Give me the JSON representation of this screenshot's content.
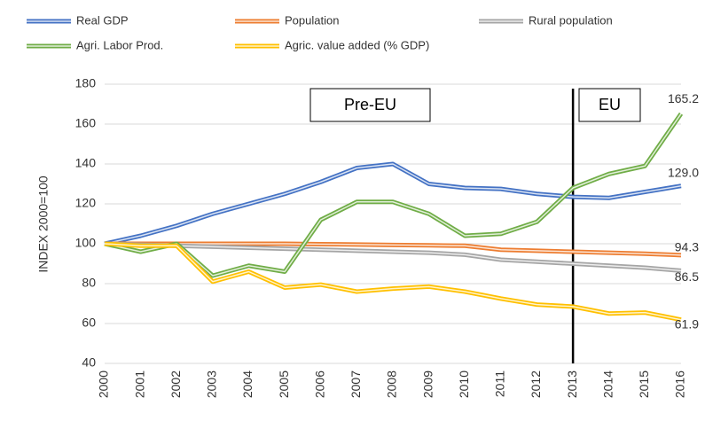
{
  "chart_data": {
    "type": "line",
    "y_label": "INDEX 2000=100",
    "categories": [
      "2000",
      "2001",
      "2002",
      "2003",
      "2004",
      "2005",
      "2006",
      "2007",
      "2008",
      "2009",
      "2010",
      "2011",
      "2012",
      "2013",
      "2014",
      "2015",
      "2016"
    ],
    "ylim": [
      40,
      180
    ],
    "yticks": [
      40,
      60,
      80,
      100,
      120,
      140,
      160,
      180
    ],
    "grid": true,
    "annotations": [
      "Pre-EU",
      "EU"
    ],
    "divider": "2013",
    "series": [
      {
        "name": "Real GDP",
        "color": "#4472c4",
        "values": [
          100,
          104,
          109,
          115,
          120,
          125,
          131,
          138,
          140,
          130,
          128,
          127.5,
          125,
          123.5,
          123,
          126,
          129.0
        ],
        "value_labels": [
          null,
          null,
          null,
          null,
          null,
          null,
          null,
          null,
          null,
          null,
          null,
          null,
          null,
          null,
          null,
          null,
          "129.0"
        ]
      },
      {
        "name": "Population",
        "color": "#ed7d31",
        "values": [
          100,
          100,
          100,
          100,
          100,
          100,
          99.8,
          99.6,
          99.4,
          99.2,
          99,
          97,
          96.5,
          96,
          95.5,
          95,
          94.3
        ],
        "value_labels": [
          null,
          null,
          null,
          null,
          null,
          null,
          null,
          null,
          null,
          null,
          null,
          null,
          null,
          null,
          null,
          null,
          "94.3"
        ]
      },
      {
        "name": "Rural population",
        "color": "#a5a5a5",
        "values": [
          100,
          99.5,
          99,
          98.5,
          98,
          97.5,
          97,
          96.5,
          96,
          95.5,
          94.5,
          92,
          91,
          90,
          89,
          88,
          86.5
        ],
        "value_labels": [
          null,
          null,
          null,
          null,
          null,
          null,
          null,
          null,
          null,
          null,
          null,
          null,
          null,
          null,
          null,
          null,
          "86.5"
        ]
      },
      {
        "name": "Agri. Labor Prod.",
        "color": "#70ad47",
        "values": [
          100,
          96,
          100,
          84,
          89,
          86,
          112,
          121,
          121,
          115,
          104,
          105,
          111,
          128,
          135,
          139,
          165.2
        ],
        "value_labels": [
          null,
          null,
          null,
          null,
          null,
          null,
          null,
          null,
          null,
          null,
          null,
          null,
          null,
          null,
          null,
          null,
          "165.2"
        ]
      },
      {
        "name": "Agric. value added (% GDP)",
        "color": "#ffc000",
        "values": [
          100,
          99,
          99,
          81,
          86,
          78,
          79.5,
          76,
          77.5,
          78.5,
          76,
          72.5,
          69.5,
          68.5,
          65,
          65.5,
          61.9
        ],
        "value_labels": [
          null,
          null,
          null,
          null,
          null,
          null,
          null,
          null,
          null,
          null,
          null,
          null,
          null,
          null,
          null,
          null,
          "61.9"
        ]
      }
    ]
  }
}
